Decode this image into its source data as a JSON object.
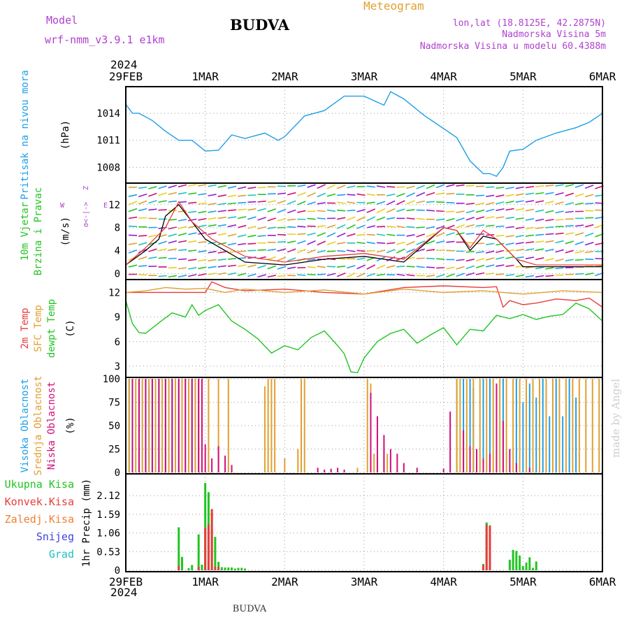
{
  "header": {
    "model_label": "Model",
    "model_name": "wrf-nmm_v3.9.1 e1km",
    "station": "BUDVA",
    "meteogram": "Meteogram",
    "lonlat": "lon,lat (18.8125E, 42.2875N)",
    "altitude": "Nadmorska Visina 5m",
    "model_altitude": "Nadmorska Visina u modelu 60.4388m",
    "year_top": "2024",
    "year_bottom": "2024",
    "footer_station": "BUDVA",
    "watermark": "made by Angel"
  },
  "colors": {
    "pressure": "#1ea0e6",
    "wind_label": "#22c422",
    "wind_speed": "#000000",
    "wind_gust": "#e83c3c",
    "temp_2m": "#e83c3c",
    "temp_sfc": "#e0a030",
    "dewpoint": "#22c422",
    "cloud_high": "#1ea0e6",
    "cloud_mid": "#e0a030",
    "cloud_low": "#d0107a",
    "precip_total": "#22c422",
    "precip_conv": "#e83c3c",
    "precip_frozen": "#f08030",
    "snow": "#4040e0",
    "hail": "#20c0c0",
    "model_label": "#b040d0"
  },
  "chart_data": {
    "type": "meteogram",
    "x_ticks": [
      "29FEB",
      "1MAR",
      "2MAR",
      "3MAR",
      "4MAR",
      "5MAR",
      "6MAR"
    ],
    "time_range_hours": [
      0,
      144
    ],
    "panels": [
      {
        "id": "pressure",
        "ylabel_lines": [
          "Pritisak na nivou mora"
        ],
        "unit": "(hPa)",
        "y_ticks": [
          "1014",
          "1011",
          "1008"
        ],
        "ylim": [
          1006.4,
          1016.8
        ],
        "series": [
          {
            "name": "pressure",
            "hours": [
              0,
              2,
              4,
              8,
              12,
              16,
              20,
              24,
              28,
              32,
              36,
              42,
              46,
              48,
              54,
              60,
              66,
              72,
              78,
              80,
              84,
              90,
              96,
              100,
              104,
              108,
              110,
              112,
              114,
              116,
              120,
              124,
              130,
              136,
              140,
              144
            ],
            "values": [
              1015.0,
              1014.0,
              1014.0,
              1013.2,
              1012.0,
              1011.0,
              1011.0,
              1009.8,
              1009.9,
              1011.6,
              1011.2,
              1011.8,
              1011.0,
              1011.4,
              1013.7,
              1014.3,
              1015.9,
              1015.9,
              1014.9,
              1016.4,
              1015.6,
              1013.8,
              1012.3,
              1011.3,
              1008.7,
              1007.3,
              1007.3,
              1007.0,
              1008.0,
              1009.8,
              1010.0,
              1011.0,
              1011.8,
              1012.4,
              1013.0,
              1014.0
            ]
          }
        ]
      },
      {
        "id": "wind",
        "ylabel_lines": [
          "10m Vjetar",
          "Brzina i Pravac"
        ],
        "unit": "(m/s)",
        "y_ticks": [
          "12",
          "8",
          "4",
          "0"
        ],
        "ylim": [
          -0.8,
          15.5
        ],
        "compass": {
          "west": "W",
          "east": "E",
          "north": "Z",
          "south": "σ<-|->"
        },
        "series": [
          {
            "name": "speed",
            "hours": [
              0,
              6,
              10,
              12,
              16,
              20,
              24,
              36,
              48,
              60,
              72,
              84,
              96,
              100,
              104,
              108,
              112,
              118,
              120,
              130,
              144
            ],
            "values": [
              1.5,
              4.0,
              6.0,
              10.0,
              12.0,
              9.0,
              6.0,
              2.0,
              1.5,
              2.5,
              3.0,
              2.0,
              8.0,
              7.5,
              4.0,
              6.5,
              6.0,
              2.5,
              1.2,
              1.2,
              1.2
            ]
          },
          {
            "name": "gust",
            "hours": [
              0,
              6,
              12,
              16,
              20,
              26,
              36,
              48,
              60,
              72,
              84,
              96,
              100,
              104,
              108,
              112,
              118,
              124,
              144
            ],
            "values": [
              1.5,
              4.5,
              8.0,
              12.5,
              9.0,
              6.0,
              3.0,
              2.0,
              3.0,
              3.5,
              2.5,
              8.0,
              7.5,
              4.5,
              7.5,
              6.0,
              2.5,
              1.5,
              1.5
            ]
          }
        ]
      },
      {
        "id": "temperature",
        "ylabel_lines": [
          "2m Temp",
          "SFC Temp",
          "dewpt Temp"
        ],
        "unit": "(C)",
        "y_ticks": [
          "12",
          "9",
          "6",
          "3"
        ],
        "ylim": [
          1.8,
          13.4
        ],
        "series": [
          {
            "name": "2m Temp",
            "hours": [
              0,
              24,
              26,
              30,
              36,
              48,
              60,
              72,
              84,
              96,
              108,
              112,
              114,
              116,
              120,
              124,
              130,
              136,
              140,
              144
            ],
            "values": [
              12.0,
              12.0,
              13.3,
              12.6,
              12.2,
              12.4,
              12.0,
              11.8,
              12.6,
              12.8,
              12.6,
              12.7,
              10.2,
              11.0,
              10.5,
              10.7,
              11.2,
              11.0,
              11.3,
              10.2
            ]
          },
          {
            "name": "SFC Temp",
            "hours": [
              0,
              6,
              12,
              18,
              24,
              30,
              36,
              48,
              60,
              72,
              84,
              96,
              108,
              120,
              132,
              144
            ],
            "values": [
              12.0,
              12.2,
              12.6,
              12.4,
              12.5,
              12.0,
              12.4,
              12.0,
              12.3,
              11.8,
              12.4,
              12.0,
              12.2,
              11.8,
              12.2,
              12.0
            ]
          },
          {
            "name": "dewpt Temp",
            "hours": [
              0,
              2,
              4,
              6,
              10,
              14,
              18,
              20,
              22,
              24,
              28,
              32,
              36,
              40,
              44,
              48,
              52,
              56,
              60,
              64,
              66,
              68,
              70,
              72,
              76,
              80,
              84,
              88,
              92,
              96,
              100,
              104,
              108,
              112,
              116,
              120,
              124,
              128,
              132,
              136,
              140,
              144
            ],
            "values": [
              11.0,
              8.2,
              7.1,
              7.0,
              8.3,
              9.5,
              9.0,
              10.5,
              9.2,
              9.8,
              10.5,
              8.5,
              7.5,
              6.3,
              4.6,
              5.5,
              5.0,
              6.5,
              7.3,
              5.5,
              4.5,
              2.3,
              2.2,
              4.0,
              6.0,
              7.0,
              7.5,
              5.8,
              6.8,
              7.7,
              5.6,
              7.5,
              7.3,
              9.2,
              8.8,
              9.3,
              8.7,
              9.1,
              9.3,
              10.7,
              10.0,
              8.5
            ]
          }
        ]
      },
      {
        "id": "clouds",
        "ylabel_lines": [
          "Visoka Oblacnost",
          "Srednja Oblacnost",
          "Niska Oblacnost"
        ],
        "unit": "(%)",
        "y_ticks": [
          "100",
          "75",
          "50",
          "25",
          "0"
        ],
        "ylim": [
          0,
          100
        ],
        "series": [
          {
            "name": "high",
            "hours": [
              0,
              1,
              2,
              4,
              6,
              7,
              8,
              10,
              12,
              14,
              16,
              18,
              20,
              21,
              22,
              100,
              102,
              104,
              105,
              108,
              110,
              114,
              118,
              120,
              122,
              124,
              126,
              128,
              130,
              132,
              134,
              136
            ],
            "values": [
              100,
              100,
              100,
              100,
              100,
              90,
              100,
              100,
              100,
              100,
              100,
              100,
              100,
              100,
              100,
              100,
              100,
              100,
              90,
              100,
              100,
              100,
              100,
              75,
              95,
              80,
              100,
              60,
              100,
              60,
              100,
              80
            ]
          },
          {
            "name": "mid",
            "hours": [
              0,
              1,
              3,
              5,
              7,
              9,
              11,
              13,
              15,
              17,
              19,
              21,
              22,
              25,
              28,
              31,
              42,
              43,
              44,
              45,
              48,
              52,
              53,
              54,
              70,
              73,
              74,
              75,
              76,
              78,
              79,
              100,
              101,
              103,
              105,
              107,
              109,
              111,
              113,
              115,
              117,
              119,
              121,
              123,
              125,
              127,
              129,
              131,
              133,
              135,
              137,
              139,
              141,
              143
            ],
            "values": [
              100,
              100,
              100,
              100,
              100,
              100,
              100,
              100,
              100,
              100,
              100,
              100,
              100,
              100,
              100,
              100,
              92,
              100,
              100,
              100,
              15,
              25,
              100,
              100,
              5,
              100,
              95,
              20,
              15,
              30,
              20,
              100,
              100,
              100,
              100,
              100,
              100,
              100,
              100,
              100,
              100,
              100,
              100,
              100,
              100,
              100,
              100,
              100,
              100,
              100,
              100,
              100,
              100,
              100
            ]
          },
          {
            "name": "low",
            "hours": [
              0,
              2,
              4,
              6,
              8,
              10,
              12,
              14,
              16,
              18,
              20,
              22,
              23,
              24,
              26,
              28,
              30,
              32,
              58,
              60,
              62,
              64,
              66,
              74,
              76,
              78,
              80,
              82,
              84,
              88,
              96,
              98,
              102,
              104,
              106,
              108,
              110,
              112,
              114,
              116,
              118,
              122
            ],
            "values": [
              100,
              100,
              100,
              100,
              100,
              100,
              100,
              100,
              100,
              100,
              100,
              100,
              100,
              30,
              15,
              28,
              18,
              8,
              5,
              3,
              4,
              5,
              3,
              85,
              60,
              40,
              25,
              20,
              10,
              5,
              4,
              65,
              45,
              28,
              25,
              15,
              20,
              95,
              55,
              25,
              10,
              5
            ]
          }
        ]
      },
      {
        "id": "precip",
        "ylabel_lines": [
          "1hr Precip"
        ],
        "unit": "(mm)",
        "y_ticks": [
          "2.12",
          "1.59",
          "1.06",
          "0.53",
          "0"
        ],
        "ylim": [
          0,
          2.7
        ],
        "legend": [
          "Ukupna Kisa",
          "Konvek.Kisa",
          "Zaledj.Kisa",
          "Snijeg",
          "Grad"
        ],
        "series": [
          {
            "name": "Ukupna Kisa",
            "hours": [
              16,
              17,
              19,
              20,
              22,
              23,
              24,
              25,
              26,
              27,
              28,
              29,
              30,
              31,
              32,
              33,
              34,
              35,
              36,
              108,
              109,
              110,
              116,
              117,
              118,
              119,
              120,
              121,
              122,
              123,
              124
            ],
            "values": [
              1.22,
              0.38,
              0.06,
              0.15,
              1.02,
              0.16,
              2.48,
              2.22,
              1.63,
              0.95,
              0.24,
              0.09,
              0.08,
              0.08,
              0.08,
              0.05,
              0.07,
              0.07,
              0.05,
              0.18,
              1.36,
              1.28,
              0.3,
              0.58,
              0.55,
              0.42,
              0.12,
              0.22,
              0.37,
              0.07,
              0.25
            ]
          },
          {
            "name": "Konvek.Kisa",
            "hours": [
              16,
              22,
              24,
              25,
              26,
              27,
              28,
              108,
              109,
              110
            ],
            "values": [
              0.12,
              0.1,
              1.2,
              1.3,
              1.74,
              0.1,
              0.1,
              0.14,
              1.3,
              1.25
            ]
          }
        ]
      }
    ]
  }
}
